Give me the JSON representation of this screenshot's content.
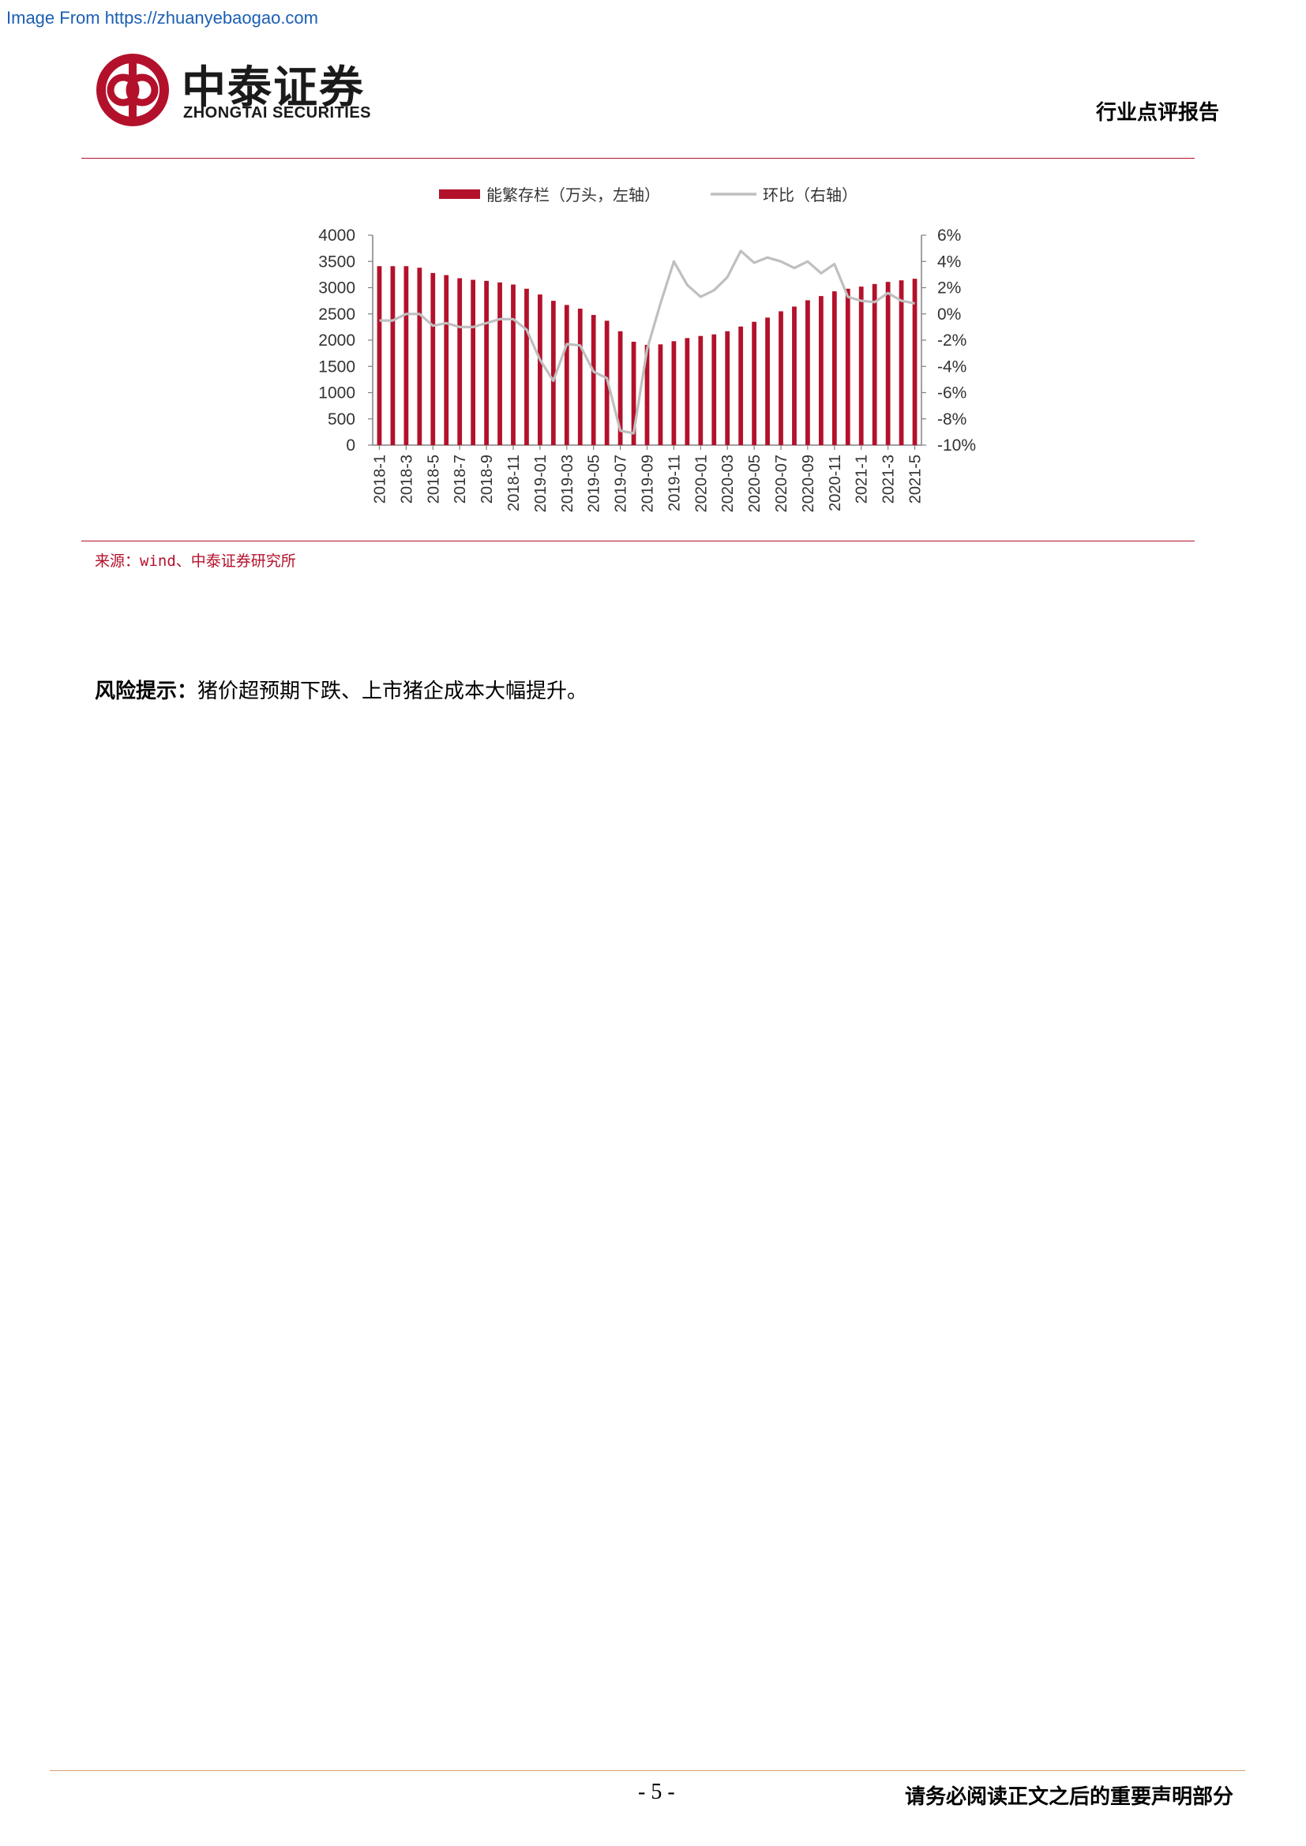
{
  "watermark": "Image From https://zhuanyebaogao.com",
  "brand": {
    "name_cn": "中泰证券",
    "name_en": "ZHONGTAI SECURITIES",
    "colors": {
      "primary": "#b3112b",
      "line": "#bfbfbf"
    }
  },
  "header": {
    "report_type": "行业点评报告"
  },
  "source": "来源：wind、中泰证券研究所",
  "risk": {
    "label": "风险提示：",
    "text": "猪价超预期下跌、上市猪企成本大幅提升。"
  },
  "footer": {
    "page": "- 5 -",
    "disclaimer": "请务必阅读正文之后的重要声明部分"
  },
  "chart_data": {
    "type": "bar",
    "title": "",
    "legend_position": "top",
    "grid": false,
    "x": [
      "2018-1",
      "2018-2",
      "2018-3",
      "2018-4",
      "2018-5",
      "2018-6",
      "2018-7",
      "2018-8",
      "2018-9",
      "2018-10",
      "2018-11",
      "2018-12",
      "2019-01",
      "2019-02",
      "2019-03",
      "2019-04",
      "2019-05",
      "2019-06",
      "2019-07",
      "2019-08",
      "2019-09",
      "2019-10",
      "2019-11",
      "2019-12",
      "2020-01",
      "2020-02",
      "2020-03",
      "2020-04",
      "2020-05",
      "2020-06",
      "2020-07",
      "2020-08",
      "2020-09",
      "2020-10",
      "2020-11",
      "2020-12",
      "2021-1",
      "2021-2",
      "2021-3",
      "2021-4",
      "2021-5"
    ],
    "x_tick_labels": [
      "2018-1",
      "2018-3",
      "2018-5",
      "2018-7",
      "2018-9",
      "2018-11",
      "2019-01",
      "2019-03",
      "2019-05",
      "2019-07",
      "2019-09",
      "2019-11",
      "2020-01",
      "2020-03",
      "2020-05",
      "2020-07",
      "2020-09",
      "2020-11",
      "2021-1",
      "2021-3",
      "2021-5"
    ],
    "y_left": {
      "ticks": [
        "4000",
        "3500",
        "3000",
        "2500",
        "2000",
        "1500",
        "1000",
        "500",
        "0"
      ],
      "ylim": [
        0,
        4000
      ]
    },
    "y_right": {
      "ticks": [
        "6%",
        "4%",
        "2%",
        "0%",
        "-2%",
        "-4%",
        "-6%",
        "-8%",
        "-10%"
      ],
      "ylim": [
        -10,
        6
      ]
    },
    "series": [
      {
        "name": "能繁存栏（万头，左轴）",
        "type": "bar",
        "axis": "left",
        "color": "#b3112b",
        "values": [
          3410,
          3410,
          3410,
          3380,
          3280,
          3240,
          3180,
          3150,
          3130,
          3100,
          3060,
          2980,
          2870,
          2750,
          2670,
          2600,
          2480,
          2370,
          2170,
          1970,
          1910,
          1920,
          1980,
          2040,
          2080,
          2110,
          2170,
          2260,
          2350,
          2430,
          2550,
          2640,
          2760,
          2840,
          2930,
          2980,
          3020,
          3070,
          3110,
          3140,
          3170
        ]
      },
      {
        "name": "环比（右轴）",
        "type": "line",
        "axis": "right",
        "color": "#bfbfbf",
        "values": [
          -0.5,
          -0.5,
          0.0,
          0.0,
          -0.9,
          -0.7,
          -1.0,
          -1.0,
          -0.7,
          -0.4,
          -0.4,
          -1.2,
          -3.5,
          -5.1,
          -2.3,
          -2.4,
          -4.4,
          -4.9,
          -8.9,
          -9.1,
          -2.7,
          0.8,
          4.0,
          2.2,
          1.3,
          1.8,
          2.8,
          4.8,
          3.9,
          4.3,
          4.0,
          3.5,
          4.0,
          3.1,
          3.8,
          1.3,
          1.0,
          0.9,
          1.6,
          1.0,
          0.8
        ]
      }
    ]
  }
}
